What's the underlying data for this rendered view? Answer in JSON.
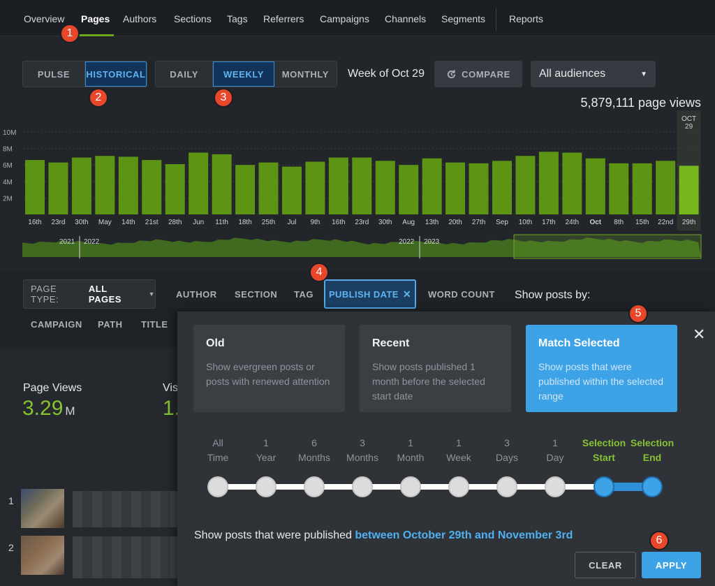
{
  "nav": {
    "items": [
      "Overview",
      "Pages",
      "Authors",
      "Sections",
      "Tags",
      "Referrers",
      "Campaigns",
      "Channels",
      "Segments",
      "Reports"
    ],
    "active": "Pages"
  },
  "mode_toggle": {
    "options": [
      "PULSE",
      "HISTORICAL"
    ],
    "selected": "HISTORICAL"
  },
  "period_toggle": {
    "options": [
      "DAILY",
      "WEEKLY",
      "MONTHLY"
    ],
    "selected": "WEEKLY"
  },
  "week_label": "Week of Oct 29",
  "compare_label": "COMPARE",
  "audience": {
    "value": "All audiences"
  },
  "total_views": "5,879,111 page views",
  "chart_data": {
    "type": "bar",
    "ylabel_ticks": [
      "10M",
      "8M",
      "6M",
      "4M",
      "2M"
    ],
    "ylim": [
      0,
      10000000
    ],
    "categories": [
      "16th",
      "23rd",
      "30th",
      "May",
      "14th",
      "21st",
      "28th",
      "Jun",
      "11th",
      "18th",
      "25th",
      "Jul",
      "9th",
      "16th",
      "23rd",
      "30th",
      "Aug",
      "13th",
      "20th",
      "27th",
      "Sep",
      "10th",
      "17th",
      "24th",
      "Oct",
      "8th",
      "15th",
      "22nd",
      "29th"
    ],
    "bold_ticks": [
      "Oct"
    ],
    "values": [
      6.6,
      6.3,
      6.9,
      7.1,
      7.0,
      6.6,
      6.1,
      7.5,
      7.3,
      6.0,
      6.3,
      5.8,
      6.4,
      6.9,
      6.9,
      6.5,
      6.0,
      6.8,
      6.3,
      6.2,
      6.5,
      7.1,
      7.6,
      7.5,
      6.8,
      6.2,
      6.2,
      6.5,
      5.9
    ],
    "value_unit": "M",
    "highlight": {
      "category": "29th",
      "label_line1": "OCT",
      "label_line2": "29"
    },
    "timeline_years": [
      "2021",
      "2022",
      "2022",
      "2023"
    ]
  },
  "filters": {
    "page_type_label": "PAGE TYPE:",
    "page_type_value": "ALL PAGES",
    "tabs_row1": [
      "AUTHOR",
      "SECTION",
      "TAG"
    ],
    "publish_date": "PUBLISH DATE",
    "word_count": "WORD COUNT",
    "tabs_row2": [
      "CAMPAIGN",
      "PATH",
      "TITLE"
    ],
    "show_posts_by": "Show posts by:"
  },
  "stats": {
    "page_views_label": "Page Views",
    "page_views_value": "3.29",
    "page_views_unit": "M",
    "visitors_label": "Vis",
    "visitors_value": "1."
  },
  "rows": [
    "1",
    "2"
  ],
  "popup": {
    "cards": [
      {
        "title": "Old",
        "desc": "Show evergreen posts or posts with renewed attention"
      },
      {
        "title": "Recent",
        "desc": "Show posts published 1 month before the selected start date"
      },
      {
        "title": "Match Selected",
        "desc": "Show posts that were published within the selected range"
      }
    ],
    "selected_card": "Match Selected",
    "stops": [
      {
        "l1": "All",
        "l2": "Time"
      },
      {
        "l1": "1",
        "l2": "Year"
      },
      {
        "l1": "6",
        "l2": "Months"
      },
      {
        "l1": "3",
        "l2": "Months"
      },
      {
        "l1": "1",
        "l2": "Month"
      },
      {
        "l1": "1",
        "l2": "Week"
      },
      {
        "l1": "3",
        "l2": "Days"
      },
      {
        "l1": "1",
        "l2": "Day"
      },
      {
        "l1": "Selection",
        "l2": "Start"
      },
      {
        "l1": "Selection",
        "l2": "End"
      }
    ],
    "summary_prefix": "Show posts that were published ",
    "summary_range": "between October 29th and November 3rd",
    "clear_label": "CLEAR",
    "apply_label": "APPLY"
  },
  "markers": [
    "1",
    "2",
    "3",
    "4",
    "5",
    "6"
  ],
  "colors": {
    "bar": "#5e9413",
    "bar_highlight": "#77b91c",
    "accent_green": "#86c232",
    "accent_blue": "#3ea2e6",
    "marker": "#e8472b"
  }
}
